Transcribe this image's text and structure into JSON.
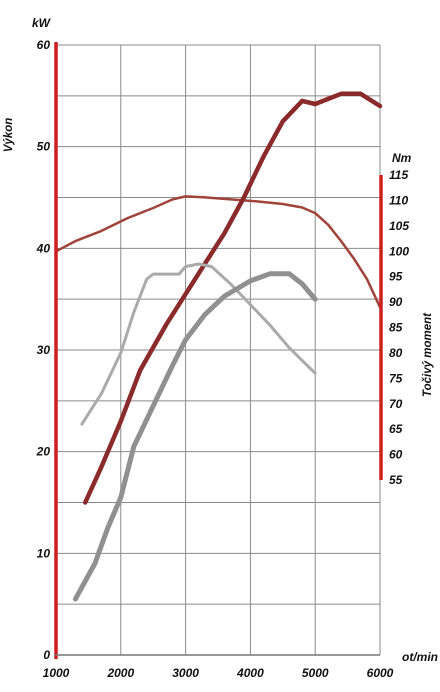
{
  "chart_data": {
    "type": "line",
    "x_unit": "ot/min",
    "x_ticks": [
      1000,
      2000,
      3000,
      4000,
      5000,
      6000
    ],
    "xlim": [
      1000,
      6000
    ],
    "left_axis": {
      "unit": "kW",
      "label": "Výkon",
      "ticks": [
        0,
        10,
        20,
        30,
        40,
        50,
        60
      ],
      "ylim": [
        0,
        60
      ]
    },
    "right_axis": {
      "unit": "Nm",
      "label": "Točivý moment",
      "ticks": [
        55,
        60,
        65,
        70,
        75,
        80,
        85,
        90,
        95,
        100,
        105,
        110,
        115
      ],
      "ylim": [
        55,
        115
      ]
    },
    "grid": true,
    "series": [
      {
        "axis": "right",
        "color": "#a0443a",
        "width": 2.5,
        "x": [
          1000,
          1300,
          1700,
          2100,
          2500,
          2800,
          3000,
          3300,
          3700,
          4100,
          4500,
          4800,
          5000,
          5200,
          5400,
          5600,
          5800,
          6000
        ],
        "values": [
          100,
          102,
          104,
          106.5,
          108.5,
          110.2,
          110.8,
          110.6,
          110.2,
          109.8,
          109.3,
          108.6,
          107.5,
          105.2,
          102,
          98.5,
          94.5,
          89
        ]
      },
      {
        "axis": "left",
        "color": "#8a2a2a",
        "width": 4.5,
        "x": [
          1450,
          1700,
          2000,
          2300,
          2700,
          3000,
          3300,
          3600,
          3900,
          4200,
          4500,
          4800,
          5000,
          5200,
          5400,
          5700,
          6000
        ],
        "values": [
          15,
          18.5,
          23,
          28,
          32.5,
          35.5,
          38.5,
          41.5,
          45,
          49,
          52.5,
          54.5,
          54.2,
          54.7,
          55.2,
          55.2,
          54
        ]
      },
      {
        "axis": "right",
        "color": "#aaaaaa",
        "width": 3,
        "x": [
          1400,
          1700,
          2000,
          2200,
          2400,
          2500,
          2700,
          2900,
          3000,
          3200,
          3400,
          3700,
          4000,
          4300,
          4600,
          5000
        ],
        "values": [
          66,
          72,
          80,
          88,
          94.5,
          95.5,
          95.5,
          95.5,
          97,
          97.5,
          97,
          93.5,
          89.5,
          85.5,
          81,
          76
        ]
      },
      {
        "axis": "left",
        "color": "#909090",
        "width": 5,
        "x": [
          1300,
          1600,
          1800,
          2000,
          2200,
          2500,
          2800,
          3000,
          3300,
          3600,
          4000,
          4300,
          4600,
          4800,
          5000
        ],
        "values": [
          5.5,
          9,
          12.5,
          15.5,
          20.5,
          24.5,
          28.5,
          31,
          33.5,
          35.3,
          36.8,
          37.5,
          37.5,
          36.5,
          35
        ]
      }
    ]
  }
}
